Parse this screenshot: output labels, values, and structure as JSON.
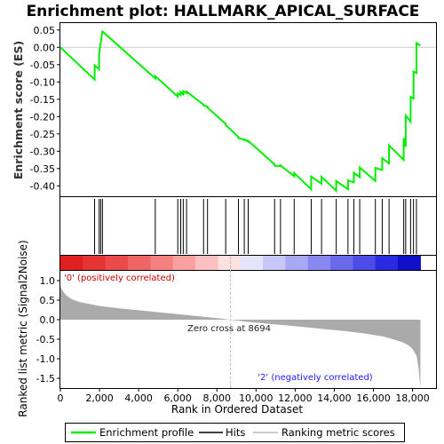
{
  "title": "Enrichment plot: HALLMARK_APICAL_SURFACE",
  "colors": {
    "es_line": "#00ee00",
    "hit_line": "#000000",
    "metric_fill": "#aaaaaa",
    "zero_line": "#bbbbbb",
    "pos_label": "#cc0000",
    "neg_label": "#1a1aff"
  },
  "legend": {
    "items": [
      {
        "label": "Enrichment profile",
        "color": "#00ee00",
        "icon": "green-line-icon"
      },
      {
        "label": "Hits",
        "color": "#000000",
        "icon": "black-line-icon"
      },
      {
        "label": "Ranking metric scores",
        "color": "#bbbbbb",
        "icon": "gray-line-icon"
      }
    ]
  },
  "chart_data": [
    {
      "type": "line",
      "panel": "enrichment-score",
      "ylabel": "Enrichment score (ES)",
      "ylim": [
        -0.43,
        0.07
      ],
      "yticks": [
        "0.05",
        "0.00",
        "-0.05",
        "-0.10",
        "-0.15",
        "-0.20",
        "-0.25",
        "-0.30",
        "-0.35",
        "-0.40"
      ],
      "ytick_values": [
        0.05,
        0.0,
        -0.05,
        -0.1,
        -0.15,
        -0.2,
        -0.25,
        -0.3,
        -0.35,
        -0.4
      ],
      "xlim": [
        0,
        19200
      ],
      "grid": false,
      "series": [
        {
          "x": [
            0,
            1750,
            1750,
            1980,
            1980,
            2060,
            2060,
            2150,
            2150,
            4850,
            4850,
            6000,
            6000,
            6150,
            6150,
            6280,
            6280,
            6450,
            6450,
            7320,
            7320,
            7520,
            7520,
            8450,
            8450,
            9100,
            9100,
            9400,
            9400,
            9600,
            9600,
            10950,
            10950,
            11250,
            11250,
            11950,
            11950,
            12820,
            12820,
            13350,
            13350,
            14100,
            14100,
            14700,
            14700,
            15000,
            15000,
            15300,
            15300,
            16100,
            16100,
            16450,
            16450,
            16800,
            16800,
            17550,
            17550,
            17650,
            17650,
            17900,
            17900,
            18050,
            18050,
            18200,
            18200,
            18400
          ],
          "y": [
            0.0,
            -0.093,
            -0.052,
            -0.063,
            -0.022,
            0.015,
            0.012,
            0.048,
            0.046,
            -0.09,
            -0.083,
            -0.142,
            -0.133,
            -0.138,
            -0.129,
            -0.136,
            -0.127,
            -0.132,
            -0.128,
            -0.166,
            -0.168,
            -0.171,
            -0.174,
            -0.221,
            -0.224,
            -0.259,
            -0.262,
            -0.267,
            -0.266,
            -0.272,
            -0.27,
            -0.338,
            -0.342,
            -0.343,
            -0.341,
            -0.372,
            -0.363,
            -0.41,
            -0.373,
            -0.394,
            -0.374,
            -0.414,
            -0.386,
            -0.41,
            -0.384,
            -0.39,
            -0.362,
            -0.375,
            -0.347,
            -0.386,
            -0.348,
            -0.354,
            -0.32,
            -0.335,
            -0.283,
            -0.325,
            -0.262,
            -0.287,
            -0.197,
            -0.215,
            -0.143,
            -0.148,
            -0.07,
            -0.074,
            0.012,
            0.005
          ]
        }
      ]
    },
    {
      "type": "scatter",
      "panel": "hits",
      "xlim": [
        0,
        19200
      ],
      "hit_ranks": [
        1750,
        1980,
        2060,
        2150,
        4850,
        6000,
        6150,
        6280,
        6450,
        7320,
        7520,
        8450,
        9100,
        9400,
        9600,
        10950,
        11250,
        11950,
        12820,
        13350,
        14100,
        14700,
        15000,
        15300,
        16100,
        16450,
        16800,
        17550,
        17650,
        17900,
        18050,
        18200
      ]
    },
    {
      "type": "area",
      "panel": "ranked-list-metric",
      "title": "",
      "xlabel": "Rank in Ordered Dataset",
      "ylabel": "Ranked list metric (Signal2Noise)",
      "xlim": [
        0,
        19200
      ],
      "ylim": [
        -1.75,
        1.25
      ],
      "xticks": [
        "0",
        "2,000",
        "4,000",
        "6,000",
        "8,000",
        "10,000",
        "12,000",
        "14,000",
        "16,000",
        "18,000"
      ],
      "xtick_values": [
        0,
        2000,
        4000,
        6000,
        8000,
        10000,
        12000,
        14000,
        16000,
        18000
      ],
      "yticks": [
        "1.0",
        "0.5",
        "0.0",
        "-0.5",
        "-1.0",
        "-1.5"
      ],
      "ytick_values": [
        1.0,
        0.5,
        0.0,
        -0.5,
        -1.0,
        -1.5
      ],
      "x": [
        0,
        100,
        300,
        600,
        1000,
        1500,
        2000,
        3000,
        4000,
        5000,
        6000,
        7000,
        8000,
        8694,
        9500,
        10500,
        11500,
        12500,
        13500,
        14500,
        15500,
        16500,
        17000,
        17500,
        17800,
        18000,
        18200,
        18300,
        18400
      ],
      "values": [
        0.85,
        0.75,
        0.62,
        0.52,
        0.45,
        0.4,
        0.35,
        0.29,
        0.24,
        0.19,
        0.14,
        0.09,
        0.04,
        0.0,
        -0.05,
        -0.1,
        -0.14,
        -0.19,
        -0.24,
        -0.29,
        -0.35,
        -0.43,
        -0.5,
        -0.58,
        -0.66,
        -0.75,
        -0.92,
        -1.2,
        -1.75
      ],
      "zero_cross": 8694,
      "annotations": {
        "positive": "'0' (positively correlated)",
        "negative": "'2' (negatively correlated)",
        "zero_cross": "Zero cross at 8694"
      },
      "heatmap_colors": [
        "#e02020",
        "#e53434",
        "#ea4a4a",
        "#ef6464",
        "#f48080",
        "#f8a0a0",
        "#fbc0c0",
        "#fde0e0",
        "#e4e4fb",
        "#c8c8f8",
        "#a8a8f4",
        "#8888f0",
        "#6a6aec",
        "#4c4ce8",
        "#2a2ae0",
        "#1010c8"
      ]
    }
  ]
}
